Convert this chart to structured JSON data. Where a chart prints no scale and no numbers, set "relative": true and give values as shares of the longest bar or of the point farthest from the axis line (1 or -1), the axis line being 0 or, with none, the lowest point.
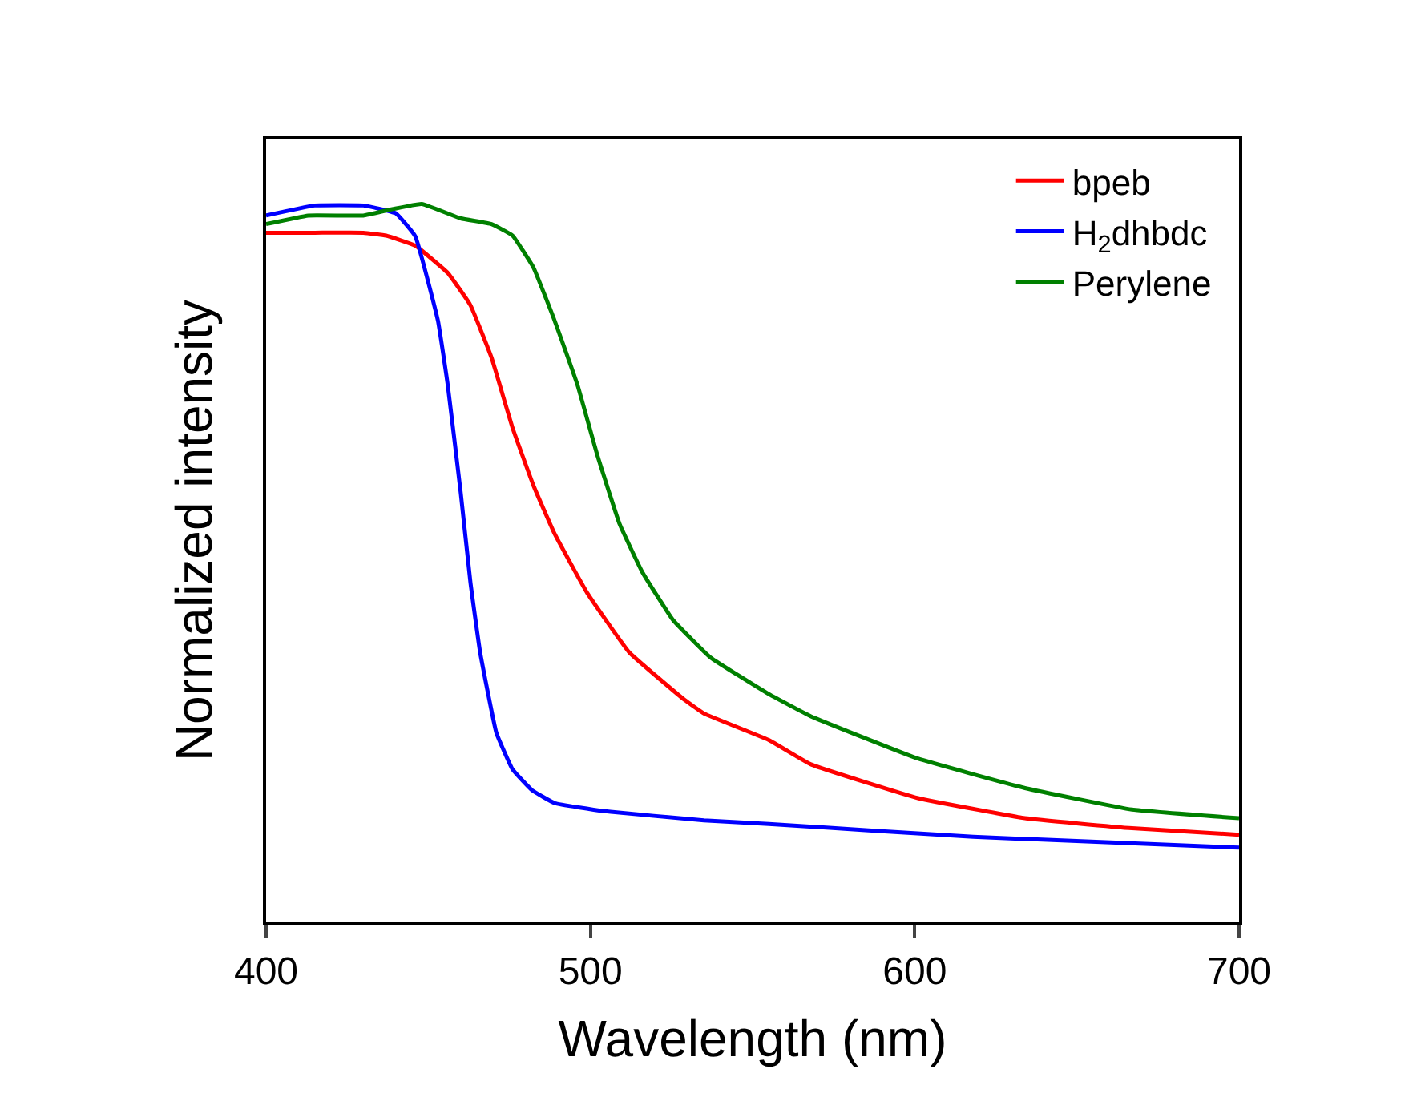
{
  "chart_data": {
    "type": "line",
    "xlabel": "Wavelength (nm)",
    "ylabel": "Normalized intensity",
    "relative": true,
    "xlim": [
      400,
      700
    ],
    "xticks": [
      400,
      500,
      600,
      700
    ],
    "legend": "top right",
    "grid": false,
    "series": [
      {
        "name": "bpeb",
        "color": "#ff0000",
        "x": [
          400,
          415,
          430,
          437,
          446,
          456,
          463,
          469.5,
          476,
          482.5,
          489,
          499,
          512,
          529,
          535,
          555,
          568,
          601,
          634,
          667,
          700
        ],
        "values": [
          0.96,
          0.96,
          0.96,
          0.956,
          0.942,
          0.904,
          0.859,
          0.786,
          0.688,
          0.607,
          0.54,
          0.458,
          0.375,
          0.309,
          0.29,
          0.253,
          0.219,
          0.172,
          0.144,
          0.13,
          0.121
        ]
      },
      {
        "name": "H$_{2}$dhbdc",
        "color": "#0000ff",
        "x": [
          400,
          415,
          430,
          440,
          446,
          453,
          456,
          460,
          463,
          466,
          471,
          476,
          482,
          489,
          504,
          535,
          555,
          618,
          700
        ],
        "values": [
          0.984,
          0.998,
          0.998,
          0.987,
          0.955,
          0.837,
          0.748,
          0.598,
          0.473,
          0.375,
          0.263,
          0.212,
          0.183,
          0.165,
          0.154,
          0.141,
          0.136,
          0.118,
          0.103
        ]
      },
      {
        "name": "Perylene",
        "color": "#008000",
        "x": [
          400,
          413,
          430,
          438,
          448,
          460,
          469.5,
          476,
          482.5,
          489,
          496,
          502,
          509,
          516,
          525.5,
          537,
          555,
          568,
          601,
          634,
          667,
          700
        ],
        "values": [
          0.972,
          0.984,
          0.984,
          0.992,
          1.0,
          0.98,
          0.972,
          0.956,
          0.911,
          0.837,
          0.748,
          0.652,
          0.554,
          0.487,
          0.42,
          0.368,
          0.317,
          0.286,
          0.227,
          0.186,
          0.156,
          0.144
        ]
      }
    ]
  }
}
